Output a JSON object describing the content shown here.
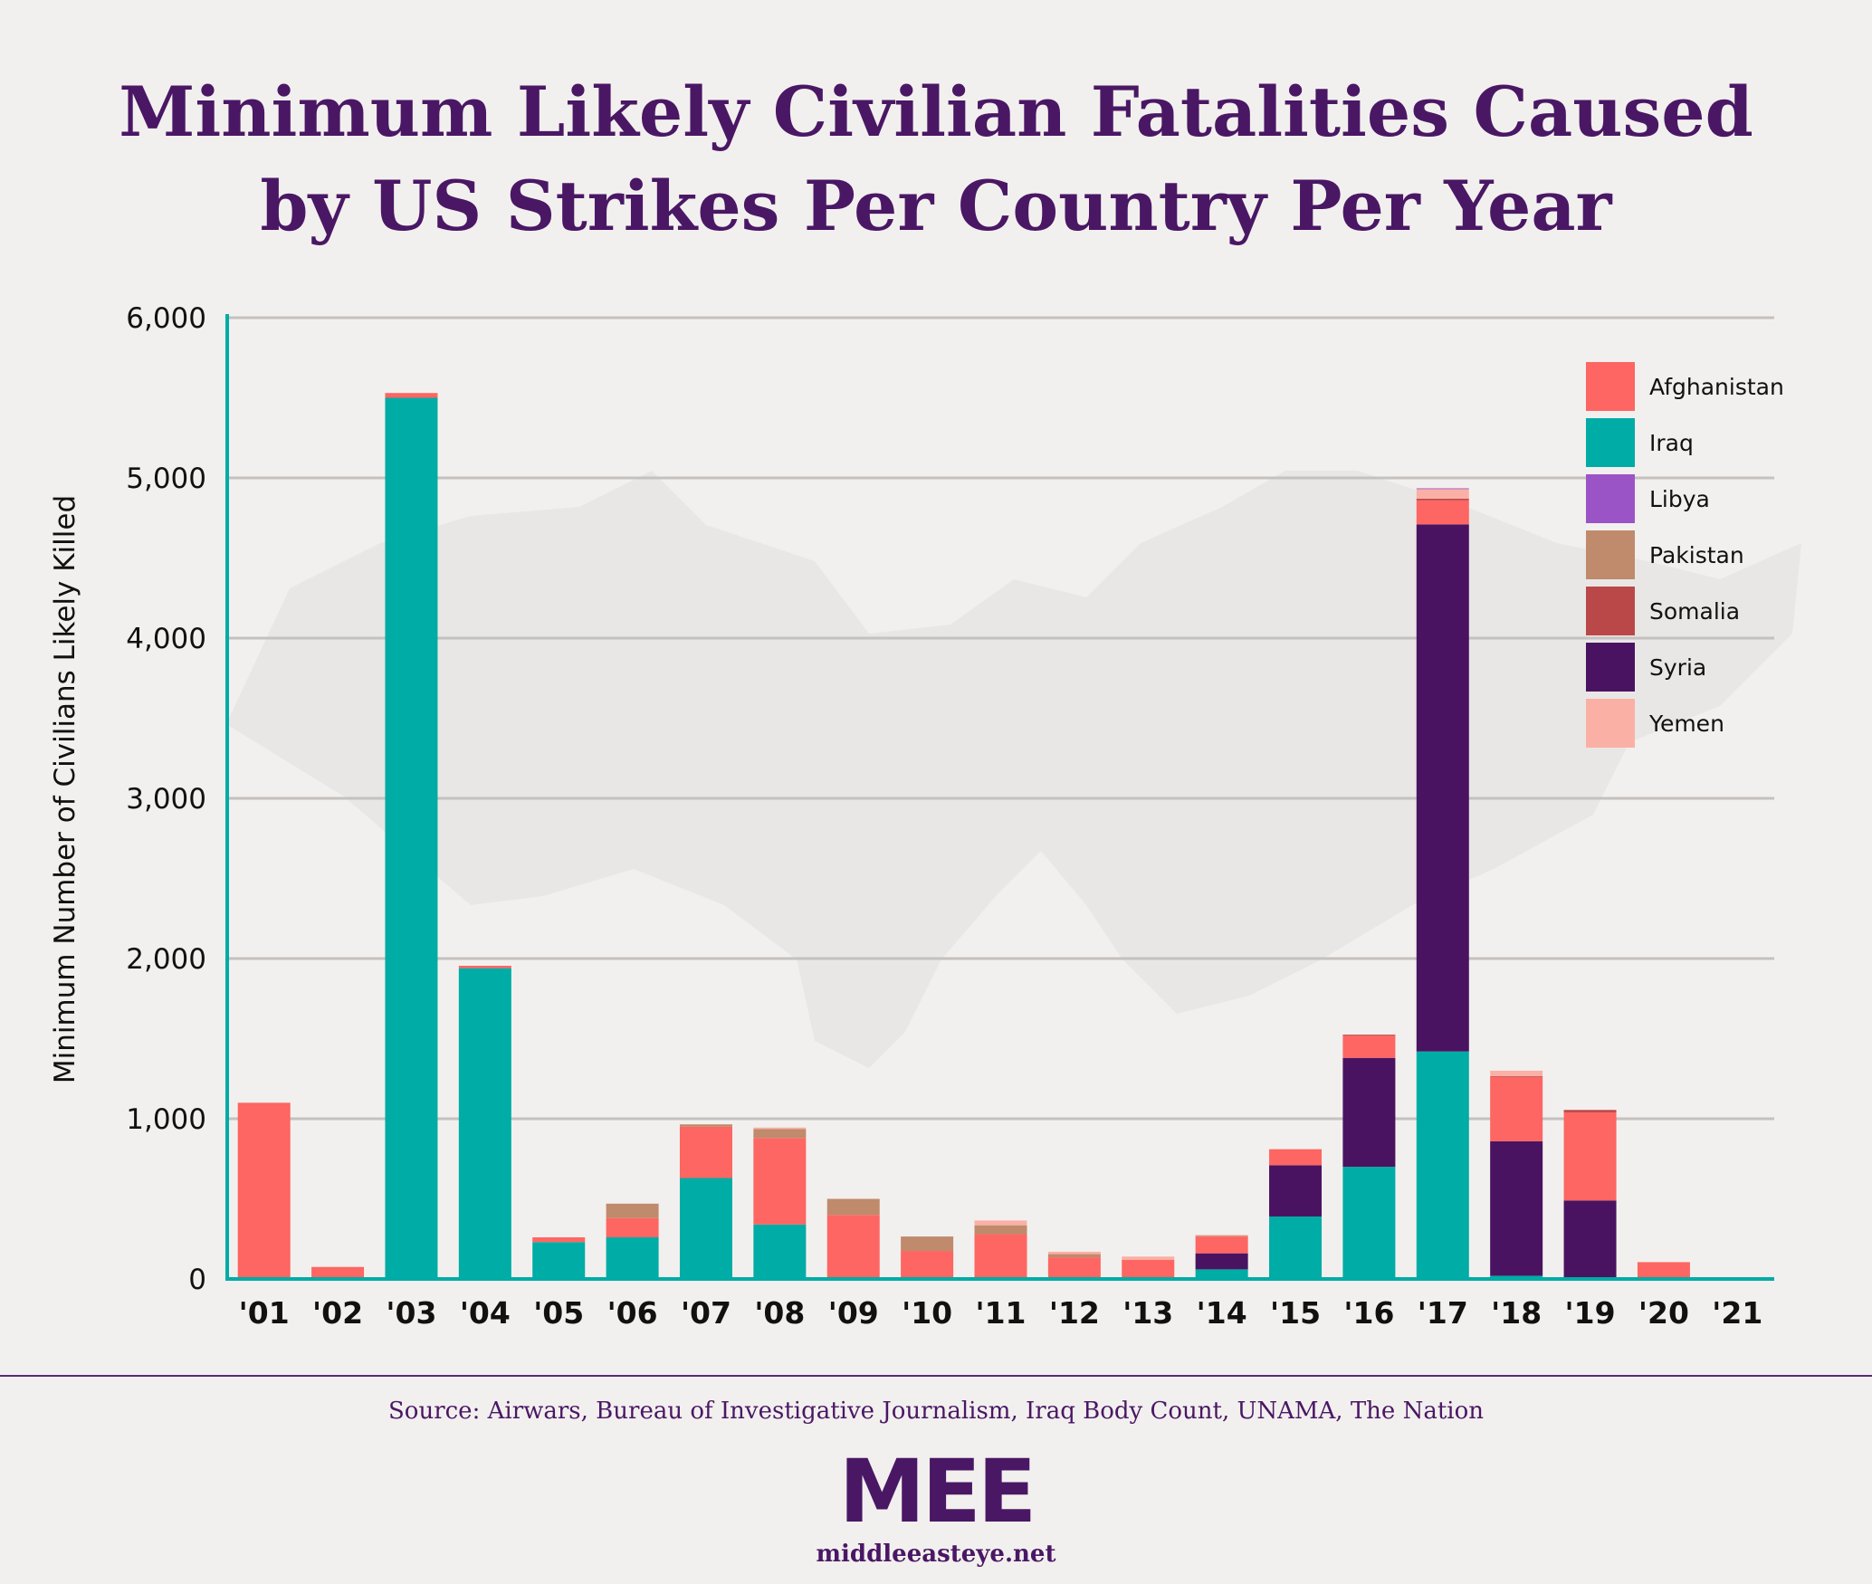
{
  "title": {
    "line1": "Minimum Likely Civilian Fatalities Caused",
    "line2": "by US Strikes Per Country Per Year"
  },
  "source": "Source: Airwars, Bureau of Investigative Journalism, Iraq Body Count, UNAMA, The Nation",
  "logo": {
    "mark": "MEE",
    "url": "middleeasteye.net"
  },
  "colors": {
    "Afghanistan": "#fd6662",
    "Iraq": "#00aca6",
    "Libya": "#9b54c6",
    "Pakistan": "#c08a6c",
    "Somalia": "#bb4848",
    "Syria": "#4a1361",
    "Yemen": "#fbb0a6",
    "axis": "#00aca6",
    "grid": "#c4c1bf",
    "title": "#4a1765"
  },
  "chart_data": {
    "type": "bar",
    "stacked": true,
    "title": "Minimum Likely Civilian Fatalities Caused by US Strikes Per Country Per Year",
    "xlabel": "",
    "ylabel": "Minimum Number of Civilians Likely Killed",
    "ylim": [
      0,
      6000
    ],
    "yticks": [
      0,
      1000,
      2000,
      3000,
      4000,
      5000,
      6000
    ],
    "ytick_labels": [
      "0",
      "1,000",
      "2,000",
      "3,000",
      "4,000",
      "5,000",
      "6,000"
    ],
    "grid": true,
    "legend_position": "top-right",
    "categories": [
      "'01",
      "'02",
      "'03",
      "'04",
      "'05",
      "'06",
      "'07",
      "'08",
      "'09",
      "'10",
      "'11",
      "'12",
      "'13",
      "'14",
      "'15",
      "'16",
      "'17",
      "'18",
      "'19",
      "'20",
      "'21"
    ],
    "series": [
      {
        "name": "Iraq",
        "values": [
          0,
          0,
          5500,
          1940,
          230,
          260,
          630,
          340,
          0,
          0,
          0,
          0,
          0,
          60,
          390,
          700,
          1420,
          20,
          10,
          0,
          0
        ]
      },
      {
        "name": "Syria",
        "values": [
          0,
          0,
          0,
          0,
          0,
          0,
          0,
          0,
          0,
          0,
          0,
          0,
          0,
          100,
          320,
          680,
          3290,
          840,
          480,
          0,
          0
        ]
      },
      {
        "name": "Afghanistan",
        "values": [
          1100,
          75,
          30,
          15,
          30,
          120,
          320,
          540,
          400,
          175,
          280,
          135,
          120,
          105,
          100,
          140,
          150,
          400,
          550,
          105,
          0
        ]
      },
      {
        "name": "Pakistan",
        "values": [
          0,
          0,
          0,
          0,
          0,
          90,
          15,
          55,
          100,
          90,
          55,
          20,
          0,
          5,
          0,
          0,
          0,
          0,
          0,
          0,
          0
        ]
      },
      {
        "name": "Somalia",
        "values": [
          0,
          0,
          0,
          0,
          0,
          0,
          0,
          0,
          0,
          0,
          0,
          0,
          0,
          0,
          0,
          5,
          10,
          5,
          15,
          0,
          0
        ]
      },
      {
        "name": "Yemen",
        "values": [
          0,
          0,
          0,
          0,
          0,
          0,
          0,
          10,
          0,
          0,
          30,
          15,
          20,
          5,
          0,
          0,
          60,
          35,
          0,
          0,
          0
        ]
      },
      {
        "name": "Libya",
        "values": [
          0,
          0,
          0,
          0,
          0,
          0,
          0,
          0,
          0,
          0,
          0,
          0,
          0,
          0,
          0,
          0,
          5,
          0,
          0,
          0,
          0
        ]
      }
    ],
    "legend": [
      "Afghanistan",
      "Iraq",
      "Libya",
      "Pakistan",
      "Somalia",
      "Syria",
      "Yemen"
    ]
  }
}
